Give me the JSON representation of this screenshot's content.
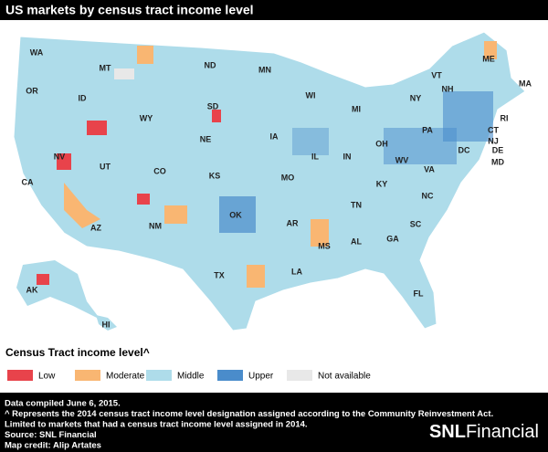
{
  "header": {
    "title": "US markets by census tract income level"
  },
  "map": {
    "state_labels": [
      "WA",
      "MT",
      "ND",
      "MN",
      "ME",
      "VT",
      "NH",
      "MA",
      "NY",
      "RI",
      "CT",
      "NJ",
      "DE",
      "MD",
      "OR",
      "ID",
      "WY",
      "SD",
      "WI",
      "MI",
      "PA",
      "OH",
      "IN",
      "IL",
      "IA",
      "NE",
      "NV",
      "UT",
      "CO",
      "KS",
      "MO",
      "KY",
      "WV",
      "VA",
      "DC",
      "CA",
      "NC",
      "TN",
      "AR",
      "OK",
      "NM",
      "AZ",
      "SC",
      "GA",
      "AL",
      "MS",
      "LA",
      "TX",
      "FL",
      "AK",
      "HI"
    ]
  },
  "legend": {
    "title": "Census Tract income level^",
    "items": [
      {
        "label": "Low",
        "color": "#e8434b"
      },
      {
        "label": "Moderate",
        "color": "#f9b672"
      },
      {
        "label": "Middle",
        "color": "#aedcea"
      },
      {
        "label": "Upper",
        "color": "#4a8ccb"
      },
      {
        "label": "Not available",
        "color": "#e8e8e8"
      }
    ]
  },
  "footer": {
    "notes": [
      "Data compiled June 6, 2015.",
      "^ Represents the 2014 census tract income level designation assigned according to the Community Reinvestment Act.",
      "Limited to markets that had a census tract income level assigned in 2014.",
      "Source: SNL Financial",
      "Map credit: Alip Artates"
    ],
    "logo": {
      "mark": "SNL",
      "name": "Financial"
    }
  }
}
